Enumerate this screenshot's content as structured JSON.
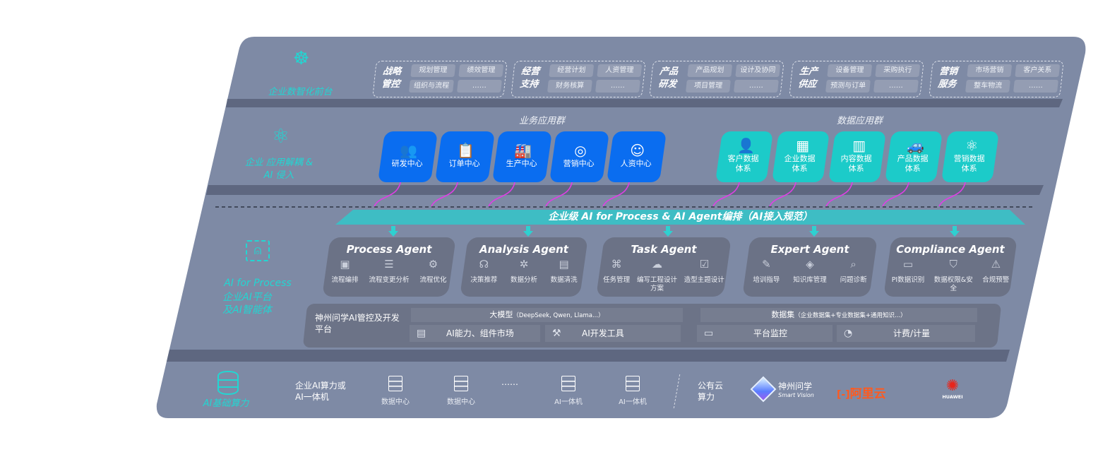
{
  "colors": {
    "panel": "#7e8aa5",
    "business_tile": "#0a6df0",
    "data_tile": "#1ccbc9",
    "accent_teal": "#22d6d2",
    "arrow": "#e03ee6",
    "agent_card": "#6b7286",
    "aliyun": "#ff5a1f",
    "huawei": "#e8251b"
  },
  "front": {
    "label": "企业数智化前台",
    "icon": "brain-icon",
    "groups": [
      {
        "title": "战略管控",
        "chips": [
          "规划管理",
          "绩效管理",
          "组织与流程",
          "……"
        ]
      },
      {
        "title": "经营支持",
        "chips": [
          "经营计划",
          "人资管理",
          "财务核算",
          "……"
        ]
      },
      {
        "title": "产品研发",
        "chips": [
          "产品规划",
          "设计及协同",
          "项目管理",
          "……"
        ]
      },
      {
        "title": "生产供应",
        "chips": [
          "设备管理",
          "采购执行",
          "预测与订单",
          "……"
        ]
      },
      {
        "title": "营销服务",
        "chips": [
          "市场营销",
          "客户关系",
          "整车物流",
          "……"
        ]
      }
    ]
  },
  "apps": {
    "label": "企业 应用解耦 & AI 侵入",
    "icon": "molecule-icon",
    "business_title": "业务应用群",
    "business": [
      {
        "label": "研发中心",
        "icon": "people-icon"
      },
      {
        "label": "订单中心",
        "icon": "clipboard-icon"
      },
      {
        "label": "生产中心",
        "icon": "factory-icon"
      },
      {
        "label": "营销中心",
        "icon": "target-icon"
      },
      {
        "label": "人资中心",
        "icon": "person-icon"
      }
    ],
    "data_title": "数据应用群",
    "data": [
      {
        "label": "客户数据体系",
        "icon": "user-icon"
      },
      {
        "label": "企业数据体系",
        "icon": "building-icon"
      },
      {
        "label": "内容数据体系",
        "icon": "books-icon"
      },
      {
        "label": "产品数据体系",
        "icon": "car-icon"
      },
      {
        "label": "营销数据体系",
        "icon": "atom-icon"
      }
    ]
  },
  "band": "企业级 AI for Process & AI Agent编排（AI接入规范）",
  "ai": {
    "label_en": "AI for Process",
    "label_cn": "企业AI平台及AI智能体",
    "icon": "face-scan-icon",
    "agents": [
      {
        "title": "Process Agent",
        "features": [
          {
            "label": "流程编排",
            "icon": "chart-window-icon"
          },
          {
            "label": "流程变更分析",
            "icon": "list-flow-icon"
          },
          {
            "label": "流程优化",
            "icon": "stack-optimize-icon"
          }
        ]
      },
      {
        "title": "Analysis Agent",
        "features": [
          {
            "label": "决策推荐",
            "icon": "head-idea-icon"
          },
          {
            "label": "数据分析",
            "icon": "atom-gear-icon"
          },
          {
            "label": "数据清洗",
            "icon": "doc-clean-icon"
          }
        ]
      },
      {
        "title": "Task Agent",
        "features": [
          {
            "label": "任务管理",
            "icon": "network-icon"
          },
          {
            "label": "编写工程设计方案",
            "icon": "cloud-icon"
          },
          {
            "label": "造型主题设计",
            "icon": "checklist-icon"
          }
        ]
      },
      {
        "title": "Expert Agent",
        "features": [
          {
            "label": "培训指导",
            "icon": "training-icon"
          },
          {
            "label": "知识库管理",
            "icon": "layers-icon"
          },
          {
            "label": "问题诊断",
            "icon": "diagnose-icon"
          }
        ]
      },
      {
        "title": "Compliance Agent",
        "features": [
          {
            "label": "PI数据识别",
            "icon": "id-card-icon"
          },
          {
            "label": "数据权限&安全",
            "icon": "shield-link-icon"
          },
          {
            "label": "合规预警",
            "icon": "alert-box-icon"
          }
        ]
      }
    ],
    "platform": {
      "title": "神州问学AI管控及开发平台",
      "model_header": "大模型",
      "model_note": "（DeepSeek, Qwen, Llama...）",
      "dataset_header": "数据集",
      "dataset_note": "（企业数据集+专业数据集+通用知识...）",
      "items": [
        {
          "label": "AI能力、组件市场",
          "icon": "market-icon"
        },
        {
          "label": "AI开发工具",
          "icon": "dev-tool-icon"
        },
        {
          "label": "平台监控",
          "icon": "monitor-icon"
        },
        {
          "label": "计费/计量",
          "icon": "gauge-icon"
        }
      ]
    }
  },
  "compute": {
    "label": "AI基础算力",
    "icon": "database-icon",
    "enterprise": "企业AI算力或AI一体机",
    "servers": [
      "数据中心",
      "数据中心",
      "AI一体机",
      "AI一体机"
    ],
    "ellipsis": "……",
    "public": "公有云算力",
    "vendors": {
      "shenzhou": "神州问学",
      "shenzhou_en": "Smart Vision",
      "aliyun": "阿里云",
      "huawei": "HUAWEI"
    }
  }
}
